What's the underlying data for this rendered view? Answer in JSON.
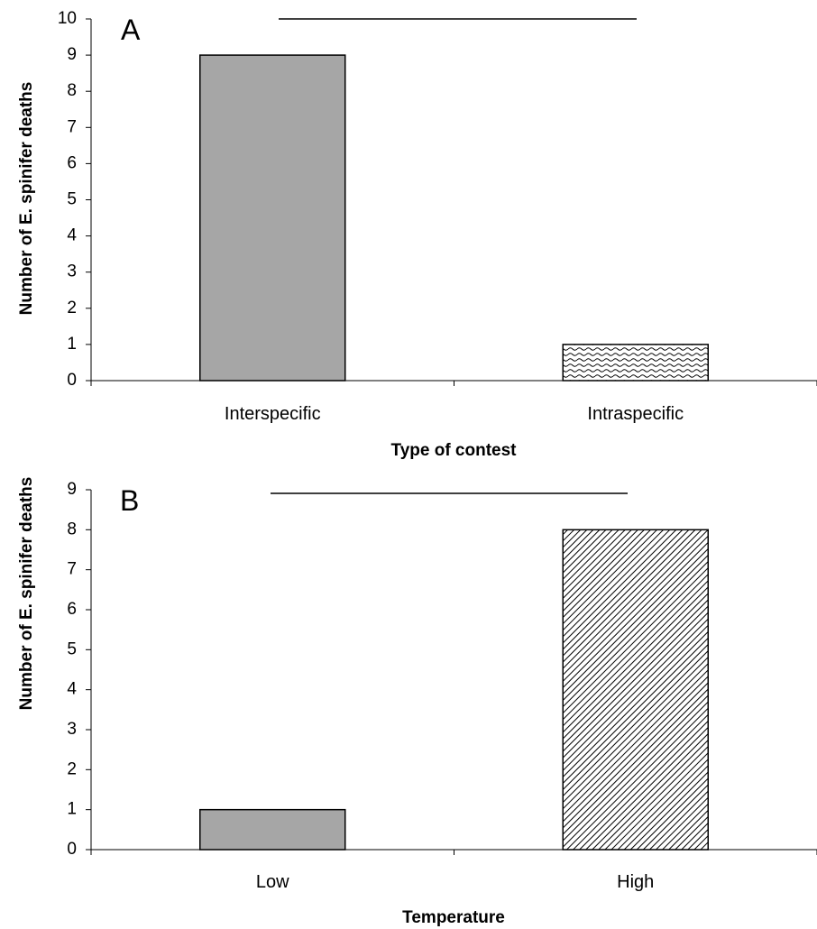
{
  "chart_data": [
    {
      "type": "bar",
      "panel_label": "A",
      "categories": [
        "Interspecific",
        "Intraspecific"
      ],
      "values": [
        9,
        1
      ],
      "fills": [
        "solid-gray",
        "wavy-hatch"
      ],
      "xlabel": "Type of contest",
      "ylabel": "Number of E. spinifer deaths",
      "ylim": [
        0,
        10
      ],
      "yticks": [
        0,
        1,
        2,
        3,
        4,
        5,
        6,
        7,
        8,
        9,
        10
      ],
      "significance_bar": true,
      "grid": false,
      "colors": {
        "bar": "#a6a6a6",
        "edge": "#000000"
      }
    },
    {
      "type": "bar",
      "panel_label": "B",
      "categories": [
        "Low",
        "High"
      ],
      "values": [
        1,
        8
      ],
      "fills": [
        "solid-gray",
        "diagonal-hatch"
      ],
      "xlabel": "Temperature",
      "ylabel": "Number of E. spinifer deaths",
      "ylim": [
        0,
        9
      ],
      "yticks": [
        0,
        1,
        2,
        3,
        4,
        5,
        6,
        7,
        8,
        9
      ],
      "significance_bar": true,
      "grid": false,
      "colors": {
        "bar": "#a6a6a6",
        "edge": "#000000"
      }
    }
  ]
}
